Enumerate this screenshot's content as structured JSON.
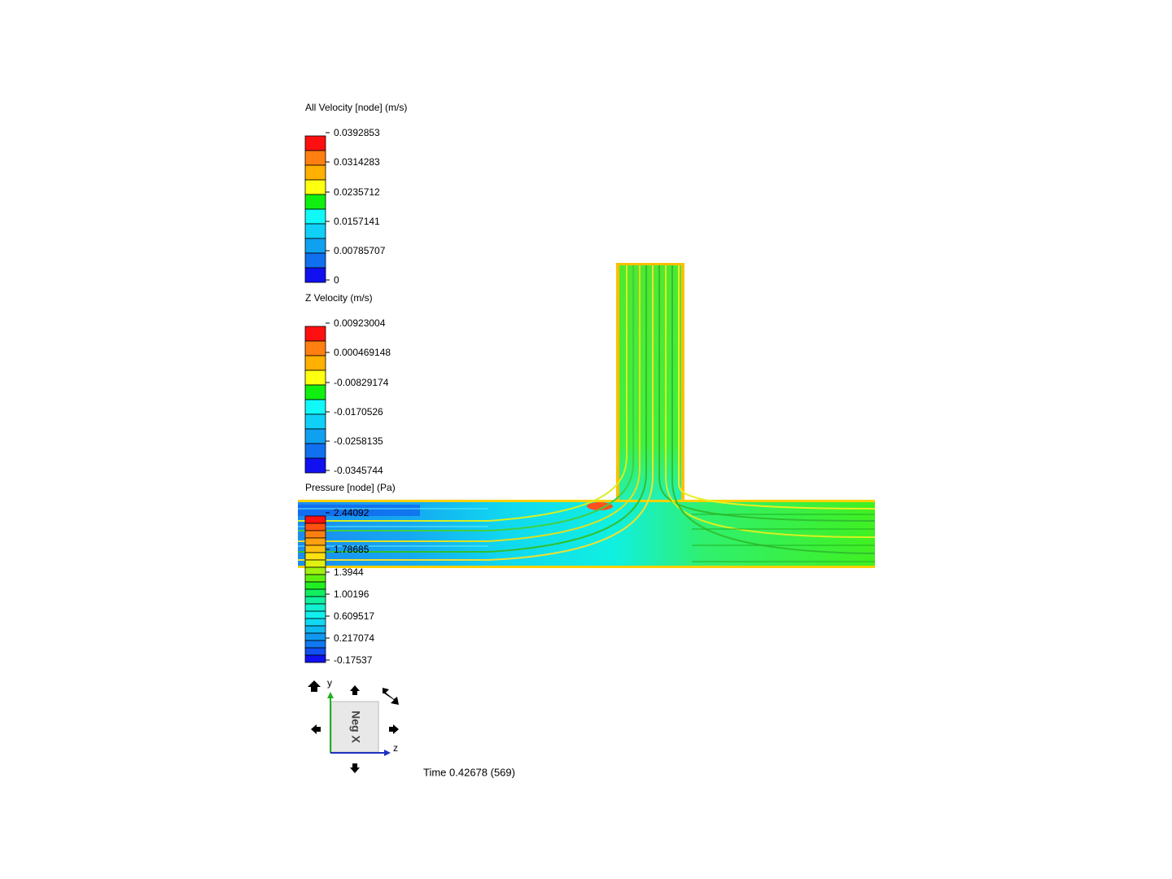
{
  "legends": [
    {
      "title": "All Velocity [node] (m/s)",
      "ticks": [
        "0.0392853",
        "0.0314283",
        "0.0235712",
        "0.0157141",
        "0.00785707",
        "0"
      ]
    },
    {
      "title": "Z Velocity (m/s)",
      "ticks": [
        "0.00923004",
        "0.000469148",
        "-0.00829174",
        "-0.0170526",
        "-0.0258135",
        "-0.0345744"
      ]
    },
    {
      "title": "Pressure [node] (Pa)",
      "ticks": [
        "2.44092",
        "1.78685",
        "1.3944",
        "1.00196",
        "0.609517",
        "0.217074",
        "-0.17537"
      ]
    }
  ],
  "view_cube": {
    "face": "Neg X",
    "axis_y": "y",
    "axis_z": "z"
  },
  "time": "Time 0.42678 (569)"
}
